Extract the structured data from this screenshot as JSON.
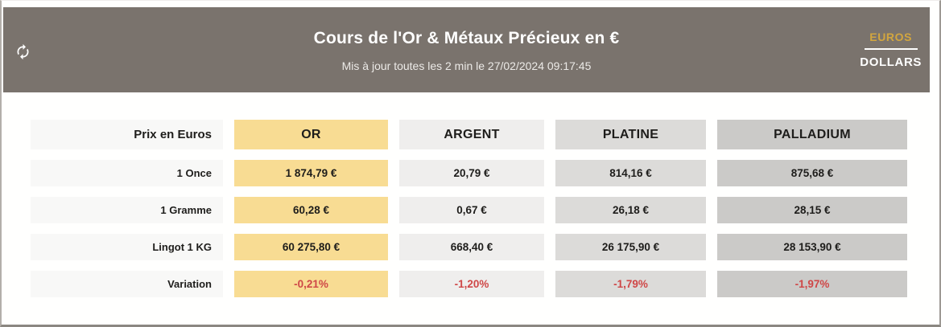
{
  "header": {
    "title": "Cours de l'Or & Métaux Précieux en €",
    "subtitle": "Mis à jour toutes les 2 min le 27/02/2024 09:17:45",
    "currency_toggle": {
      "selected": "EUROS",
      "euros_label": "EUROS",
      "dollars_label": "DOLLARS"
    },
    "refresh_icon": "refresh-icon"
  },
  "table": {
    "corner_label": "Prix en Euros",
    "columns": [
      "OR",
      "ARGENT",
      "PLATINE",
      "PALLADIUM"
    ],
    "rows": [
      {
        "label": "1 Once",
        "values": [
          "1 874,79 €",
          "20,79 €",
          "814,16 €",
          "875,68 €"
        ],
        "negative": false
      },
      {
        "label": "1 Gramme",
        "values": [
          "60,28 €",
          "0,67 €",
          "26,18 €",
          "28,15 €"
        ],
        "negative": false
      },
      {
        "label": "Lingot 1 KG",
        "values": [
          "60 275,80 €",
          "668,40 €",
          "26 175,90 €",
          "28 153,90 €"
        ],
        "negative": false
      },
      {
        "label": "Variation",
        "values": [
          "-0,21%",
          "-1,20%",
          "-1,79%",
          "-1,97%"
        ],
        "negative": true
      }
    ]
  },
  "colors": {
    "header_bg": "#7a736d",
    "accent_gold": "#d2a63f",
    "or_bg": "#f8dc93",
    "argent_bg": "#efeeed",
    "platine_bg": "#dcdbd9",
    "palladium_bg": "#cbcac8",
    "label_bg": "#f8f8f7",
    "negative": "#cf4747"
  }
}
